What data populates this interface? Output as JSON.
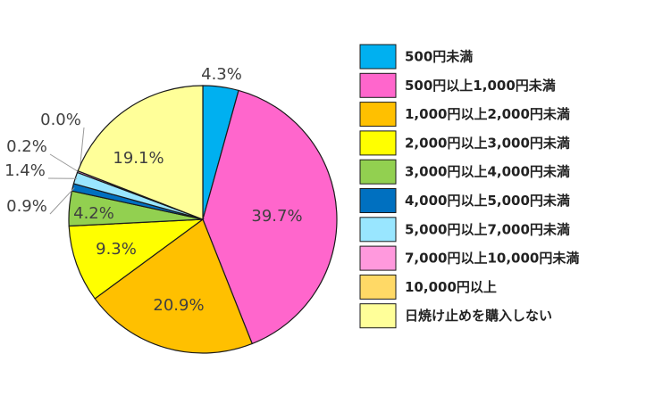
{
  "chart_data": {
    "type": "pie",
    "categories": [
      "500円未満",
      "500円以上1,000円未満",
      "1,000円以上2,000円未満",
      "2,000円以上3,000円未満",
      "3,000円以上4,000円未満",
      "4,000円以上5,000円未満",
      "5,000円以上7,000円未満",
      "7,000円以上10,000円未満",
      "10,000円以上",
      "日焼け止めを購入しない"
    ],
    "values": [
      4.3,
      39.7,
      20.9,
      9.3,
      4.2,
      0.9,
      1.4,
      0.2,
      0.0,
      19.1
    ],
    "value_labels": [
      "4.3%",
      "39.7%",
      "20.9%",
      "9.3%",
      "4.2%",
      "0.9%",
      "1.4%",
      "0.2%",
      "0.0%",
      "19.1%"
    ],
    "colors": [
      "#00b0f0",
      "#ff66cc",
      "#ffc000",
      "#ffff00",
      "#92d050",
      "#0070c0",
      "#99e6ff",
      "#ff99dd",
      "#ffd966",
      "#ffff99"
    ],
    "legend": "right"
  }
}
